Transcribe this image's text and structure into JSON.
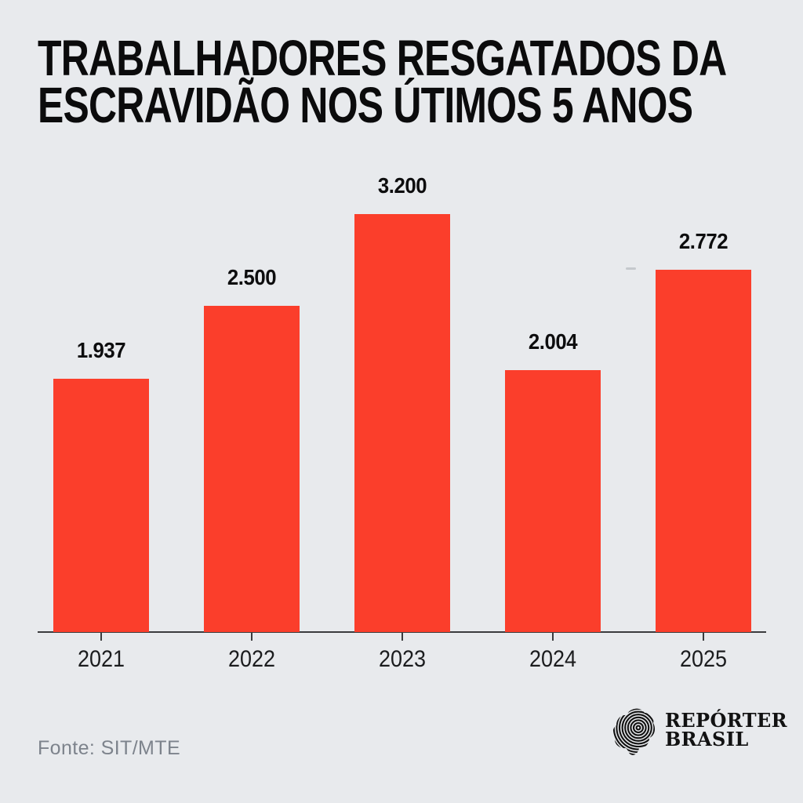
{
  "title_lines": [
    "TRABALHADORES RESGATADOS DA",
    "ESCRAVIDÃO NOS ÚTIMOS 5 ANOS"
  ],
  "source": "Fonte: SIT/MTE",
  "logo": {
    "line1": "REPÓRTER",
    "line2": "BRASIL",
    "icon": "brazil-fingerprint"
  },
  "colors": {
    "background": "#E8EAED",
    "bar": "#FB3E2B",
    "title_text": "#0B0B0C",
    "axis": "#3B3C3E",
    "value_text": "#0D0D0E",
    "year_text": "#1B1C1E",
    "source_text": "#7D838C",
    "logo_text": "#121212"
  },
  "chart_data": {
    "type": "bar",
    "title": "Trabalhadores resgatados da escravidão nos útimos 5 anos",
    "categories": [
      "2021",
      "2022",
      "2023",
      "2024",
      "2025"
    ],
    "values": [
      1937,
      2500,
      3200,
      2004,
      2772
    ],
    "value_labels": [
      "1.937",
      "2.500",
      "3.200",
      "2.004",
      "2.772"
    ],
    "xlabel": "",
    "ylabel": "",
    "ylim": [
      0,
      3200
    ],
    "grid": false,
    "legend": false,
    "bar_color": "#FB3E2B",
    "value_labels_position": "above-bars"
  }
}
